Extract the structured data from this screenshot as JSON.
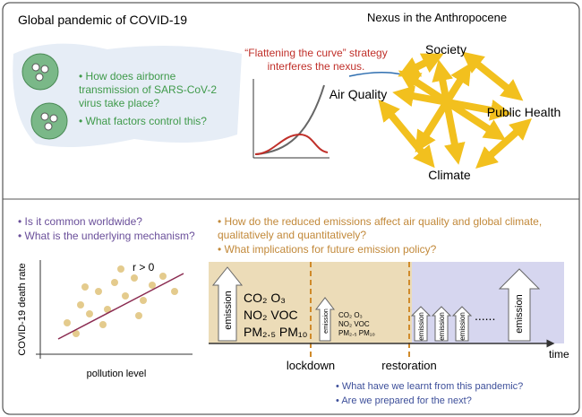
{
  "pandemic": {
    "title": "Global pandemic of COVID-19",
    "questions": [
      "How does airborne transmission of SARS-CoV-2 virus take place?",
      "What factors control this?"
    ]
  },
  "curve_note": "“Flattening the curve” strategy interferes the nexus.",
  "nexus": {
    "title": "Nexus in the Anthropocene",
    "nodes": [
      "Society",
      "Air Quality",
      "Public Health",
      "Climate"
    ]
  },
  "correlation": {
    "questions": [
      "Is it common worldwide?",
      "What is the underlying mechanism?"
    ],
    "r_label": "r > 0",
    "y_label": "COVID-19 death rate",
    "x_label": "pollution level"
  },
  "emissions": {
    "questions": [
      "How do the reduced emissions affect air quality and global climate, qualitatively and quantitatively?",
      "What implications for future emission policy?"
    ],
    "before": {
      "arrow": "emission",
      "species": [
        "CO₂ O₃",
        "NO₂ VOC",
        "PM₂.₅ PM₁₀"
      ]
    },
    "lockdown": {
      "arrow": "emission",
      "species": [
        "CO₂ O₃",
        "NO₂ VOC",
        "PM₂.₅ PM₁₀"
      ]
    },
    "recovery": {
      "arrows": [
        "emission",
        "emission",
        "emission",
        "emission"
      ],
      "dots": "......"
    },
    "axis": {
      "time": "time",
      "lockdown": "lockdown",
      "restoration": "restoration"
    }
  },
  "outlook": [
    "What have we learnt from this pandemic?",
    "Are we prepared for the next?"
  ]
}
